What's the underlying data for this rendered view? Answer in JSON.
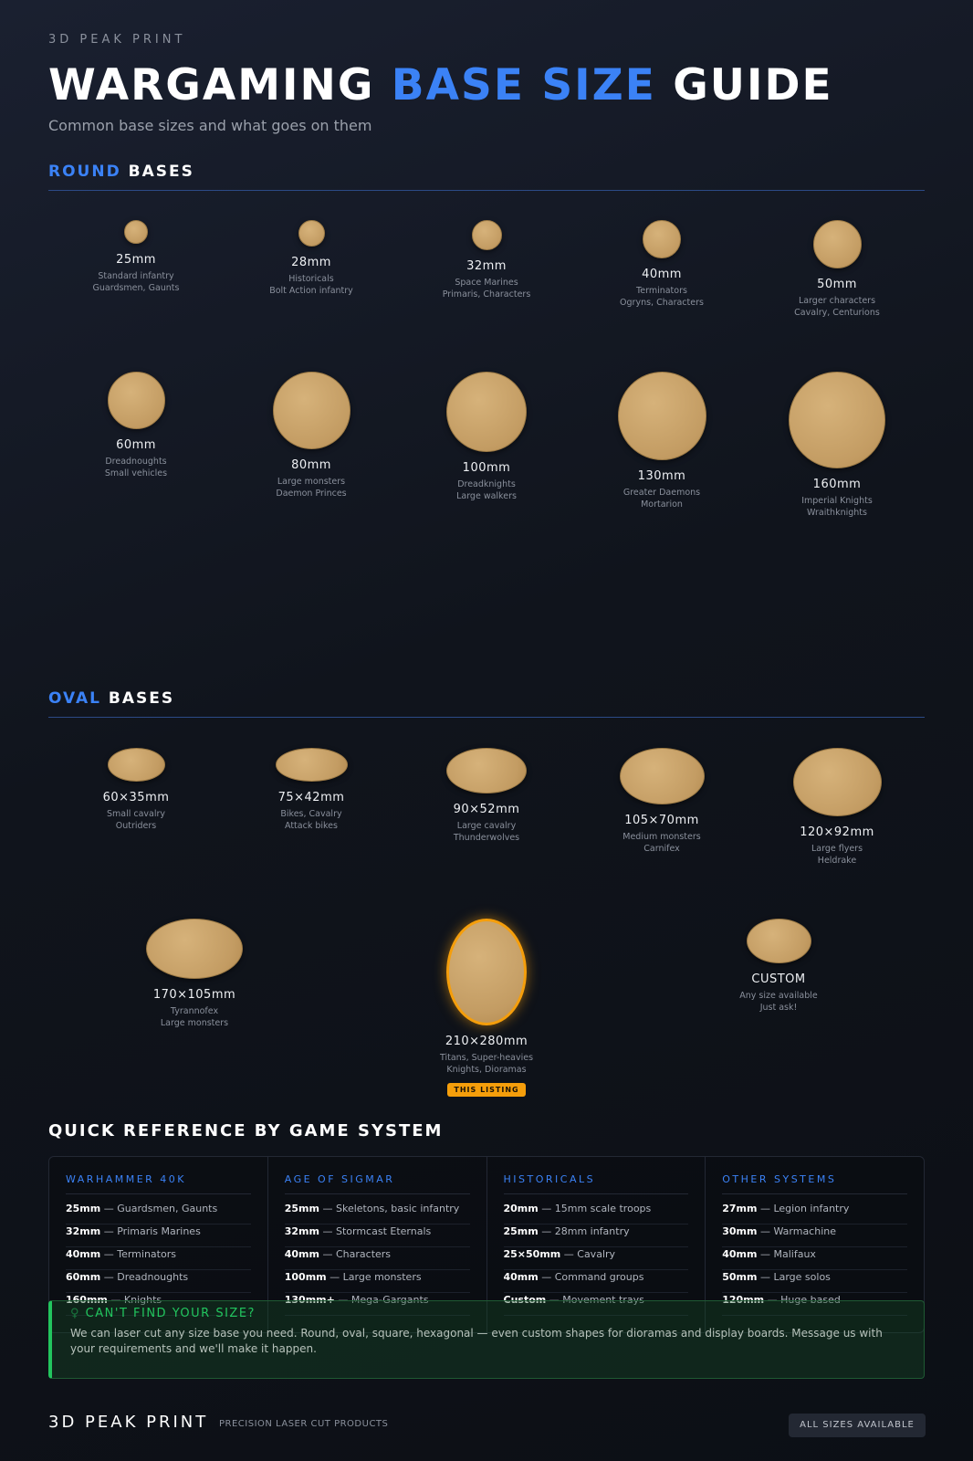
{
  "brand": "3D PEAK PRINT",
  "title": {
    "part1": "WARGAMING",
    "part2": "BASE SIZE",
    "part3": "GUIDE"
  },
  "subtitle": "Common base sizes and what goes on them",
  "colors": {
    "accent": "#3b82f6",
    "base": "#c9a46b",
    "highlight": "#f59e0b",
    "callout": "#22c55e"
  },
  "round": {
    "heading_accent": "ROUND",
    "heading": "BASES",
    "items": [
      {
        "size": "25mm",
        "l1": "Standard infantry",
        "l2": "Guardsmen, Gaunts"
      },
      {
        "size": "28mm",
        "l1": "Historicals",
        "l2": "Bolt Action infantry"
      },
      {
        "size": "32mm",
        "l1": "Space Marines",
        "l2": "Primaris, Characters"
      },
      {
        "size": "40mm",
        "l1": "Terminators",
        "l2": "Ogryns, Characters"
      },
      {
        "size": "50mm",
        "l1": "Larger characters",
        "l2": "Cavalry, Centurions"
      },
      {
        "size": "60mm",
        "l1": "Dreadnoughts",
        "l2": "Small vehicles"
      },
      {
        "size": "80mm",
        "l1": "Large monsters",
        "l2": "Daemon Princes"
      },
      {
        "size": "100mm",
        "l1": "Dreadknights",
        "l2": "Large walkers"
      },
      {
        "size": "130mm",
        "l1": "Greater Daemons",
        "l2": "Mortarion"
      },
      {
        "size": "160mm",
        "l1": "Imperial Knights",
        "l2": "Wraithknights"
      }
    ]
  },
  "oval": {
    "heading_accent": "OVAL",
    "heading": "BASES",
    "items": [
      {
        "size": "60×35mm",
        "l1": "Small cavalry",
        "l2": "Outriders"
      },
      {
        "size": "75×42mm",
        "l1": "Bikes, Cavalry",
        "l2": "Attack bikes"
      },
      {
        "size": "90×52mm",
        "l1": "Large cavalry",
        "l2": "Thunderwolves"
      },
      {
        "size": "105×70mm",
        "l1": "Medium monsters",
        "l2": "Carnifex"
      },
      {
        "size": "120×92mm",
        "l1": "Large flyers",
        "l2": "Heldrake"
      },
      {
        "size": "170×105mm",
        "l1": "Tyrannofex",
        "l2": "Large monsters"
      },
      {
        "size": "210×280mm",
        "l1": "Titans, Super-heavies",
        "l2": "Knights, Dioramas",
        "badge": "THIS LISTING"
      },
      {
        "size": "CUSTOM",
        "l1": "Any size available",
        "l2": "Just ask!"
      }
    ]
  },
  "quick_ref": {
    "title": "QUICK REFERENCE BY GAME SYSTEM",
    "columns": [
      {
        "name": "WARHAMMER 40K",
        "rows": [
          [
            "25mm",
            "Guardsmen, Gaunts"
          ],
          [
            "32mm",
            "Primaris Marines"
          ],
          [
            "40mm",
            "Terminators"
          ],
          [
            "60mm",
            "Dreadnoughts"
          ],
          [
            "160mm",
            "Knights"
          ]
        ]
      },
      {
        "name": "AGE OF SIGMAR",
        "rows": [
          [
            "25mm",
            "Skeletons, basic infantry"
          ],
          [
            "32mm",
            "Stormcast Eternals"
          ],
          [
            "40mm",
            "Characters"
          ],
          [
            "100mm",
            "Large monsters"
          ],
          [
            "130mm+",
            "Mega-Gargants"
          ]
        ]
      },
      {
        "name": "HISTORICALS",
        "rows": [
          [
            "20mm",
            "15mm scale troops"
          ],
          [
            "25mm",
            "28mm infantry"
          ],
          [
            "25×50mm",
            "Cavalry"
          ],
          [
            "40mm",
            "Command groups"
          ],
          [
            "Custom",
            "Movement trays"
          ]
        ]
      },
      {
        "name": "OTHER SYSTEMS",
        "rows": [
          [
            "27mm",
            "Legion infantry"
          ],
          [
            "30mm",
            "Warmachine"
          ],
          [
            "40mm",
            "Malifaux"
          ],
          [
            "50mm",
            "Large solos"
          ],
          [
            "120mm",
            "Huge based"
          ]
        ]
      }
    ]
  },
  "callout": {
    "icon": "lightbulb-icon",
    "title": "CAN'T FIND YOUR SIZE?",
    "text": "We can laser cut any size base you need. Round, oval, square, hexagonal — even custom shapes for dioramas and display boards. Message us with your requirements and we'll make it happen."
  },
  "footer": {
    "brand": "3D PEAK PRINT",
    "tagline": "PRECISION LASER CUT PRODUCTS",
    "button": "ALL SIZES AVAILABLE"
  }
}
